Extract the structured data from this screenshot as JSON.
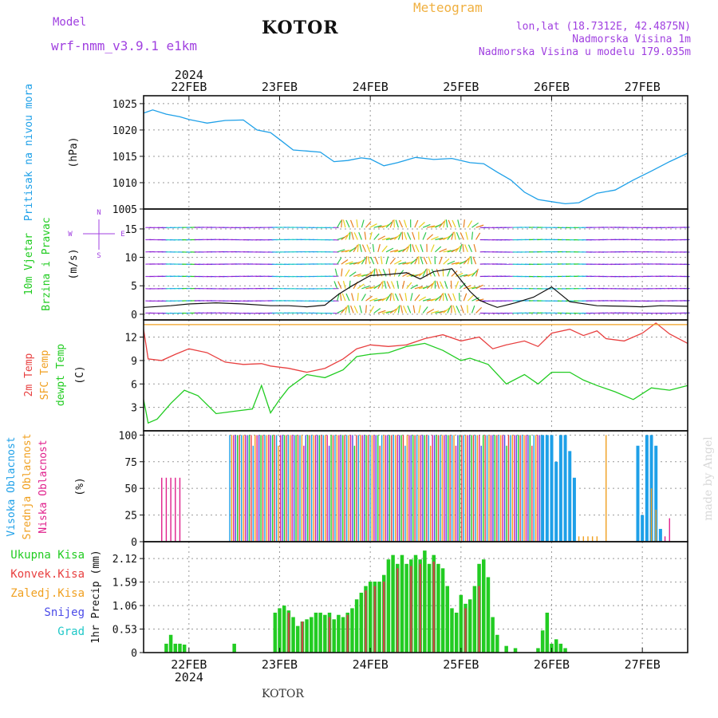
{
  "header": {
    "model_label": "Model",
    "model_name": "wrf-nmm_v3.9.1  e1km",
    "station": "KOTOR",
    "meteogram": "Meteogram",
    "coords": "lon,lat (18.7312E, 42.4875N)",
    "altitude": "Nadmorska Visina 1m",
    "model_altitude": "Nadmorska Visina u modelu 179.035m"
  },
  "footer": {
    "station": "KOTOR",
    "credit": "made by Angel"
  },
  "colors": {
    "pressure": "#1ea0e8",
    "temp": "#e84040",
    "sfc": "#f0a020",
    "dewpt": "#22cc22",
    "high_cloud": "#1ea0e8",
    "mid_cloud": "#f0a020",
    "low_cloud": "#e0208c",
    "precip": "#22cc22",
    "conv": "#c84848",
    "snow": "#4a4ae8",
    "grad": "#20c8c8"
  },
  "chart_data": [
    {
      "type": "line",
      "panel": "pressure",
      "year": "2024",
      "x_ticks": [
        "22FEB",
        "23FEB",
        "24FEB",
        "25FEB",
        "26FEB",
        "27FEB"
      ],
      "ylabel_left": "Pritisak na nivou mora",
      "ylabel_unit": "(hPa)",
      "yticks": [
        "1005",
        "1010",
        "1015",
        "1020",
        "1025"
      ],
      "ylim": [
        1005,
        1026.5
      ],
      "series": [
        {
          "name": "Pritisak na nivou mora",
          "color": "#1ea0e8",
          "x": [
            21.5,
            21.6,
            21.75,
            21.9,
            22.0,
            22.2,
            22.4,
            22.6,
            22.75,
            22.9,
            23.0,
            23.15,
            23.3,
            23.45,
            23.6,
            23.75,
            23.9,
            24.0,
            24.15,
            24.3,
            24.5,
            24.7,
            24.9,
            25.1,
            25.25,
            25.4,
            25.55,
            25.7,
            25.85,
            26.0,
            26.15,
            26.3,
            26.5,
            26.7,
            26.9,
            27.1,
            27.3,
            27.5
          ],
          "y": [
            1023.2,
            1023.8,
            1023.0,
            1022.5,
            1022.0,
            1021.3,
            1021.8,
            1021.9,
            1020.0,
            1019.5,
            1018.2,
            1016.2,
            1016.0,
            1015.8,
            1014.0,
            1014.2,
            1014.7,
            1014.5,
            1013.2,
            1013.8,
            1014.8,
            1014.4,
            1014.6,
            1013.8,
            1013.6,
            1012.0,
            1010.5,
            1008.2,
            1006.8,
            1006.4,
            1006.0,
            1006.2,
            1008.0,
            1008.6,
            1010.5,
            1012.2,
            1014.0,
            1015.6
          ]
        }
      ]
    },
    {
      "type": "line",
      "panel": "wind",
      "ylabel_left": [
        "10m Vjetar",
        "Brzina i Pravac"
      ],
      "ylabel_unit": "(m/s)",
      "compass": [
        "N",
        "S",
        "W",
        "E"
      ],
      "yticks": [
        "0",
        "5",
        "10",
        "15"
      ],
      "ylim": [
        -1,
        18.5
      ],
      "series": [
        {
          "name": "10m speed",
          "color": "#111111",
          "x": [
            21.5,
            21.8,
            22.0,
            22.3,
            22.6,
            22.9,
            23.1,
            23.3,
            23.5,
            23.65,
            23.8,
            24.0,
            24.2,
            24.4,
            24.55,
            24.7,
            24.9,
            25.0,
            25.1,
            25.2,
            25.3,
            25.4,
            25.6,
            25.8,
            26.0,
            26.2,
            26.5,
            26.8,
            27.0,
            27.2,
            27.5
          ],
          "y": [
            1.2,
            1.5,
            1.8,
            2.0,
            1.8,
            1.5,
            1.5,
            1.3,
            1.6,
            3.5,
            5.0,
            6.8,
            7.0,
            7.3,
            6.2,
            7.5,
            8.0,
            6.0,
            4.0,
            2.5,
            1.8,
            1.2,
            2.0,
            3.0,
            4.8,
            2.2,
            1.5,
            1.4,
            1.3,
            1.5,
            1.4
          ]
        }
      ]
    },
    {
      "type": "line",
      "panel": "temperature",
      "ylabel_left": [
        "2m Temp",
        "SFC Temp",
        "dewpt Temp"
      ],
      "ylabel_unit": "(C)",
      "yticks": [
        "3",
        "6",
        "9",
        "12"
      ],
      "ylim": [
        0,
        14.2
      ],
      "series": [
        {
          "name": "2m Temp",
          "color": "#e84040",
          "x": [
            21.5,
            21.55,
            21.7,
            21.85,
            22.0,
            22.2,
            22.4,
            22.6,
            22.8,
            22.9,
            23.1,
            23.3,
            23.5,
            23.7,
            23.85,
            24.0,
            24.2,
            24.4,
            24.6,
            24.8,
            25.0,
            25.2,
            25.35,
            25.5,
            25.7,
            25.85,
            26.0,
            26.2,
            26.35,
            26.5,
            26.6,
            26.8,
            27.0,
            27.15,
            27.3,
            27.5
          ],
          "y": [
            13.0,
            9.2,
            9.0,
            9.8,
            10.5,
            10.0,
            8.8,
            8.5,
            8.6,
            8.3,
            8.0,
            7.5,
            8.0,
            9.2,
            10.5,
            11.0,
            10.8,
            11.0,
            11.8,
            12.3,
            11.5,
            12.0,
            10.5,
            11.0,
            11.5,
            10.8,
            12.5,
            13.0,
            12.2,
            12.8,
            11.8,
            11.5,
            12.5,
            13.8,
            12.4,
            11.2
          ]
        },
        {
          "name": "SFC Temp",
          "color": "#f0a020",
          "x": [
            21.5,
            27.5
          ],
          "y": [
            13.6,
            13.6
          ]
        },
        {
          "name": "dewpt Temp",
          "color": "#22cc22",
          "x": [
            21.5,
            21.55,
            21.65,
            21.8,
            21.95,
            22.1,
            22.3,
            22.5,
            22.7,
            22.8,
            22.9,
            23.0,
            23.1,
            23.3,
            23.5,
            23.7,
            23.85,
            24.0,
            24.2,
            24.4,
            24.6,
            24.8,
            25.0,
            25.1,
            25.3,
            25.5,
            25.7,
            25.85,
            26.0,
            26.2,
            26.35,
            26.5,
            26.7,
            26.9,
            27.1,
            27.3,
            27.5
          ],
          "y": [
            4.0,
            1.0,
            1.5,
            3.5,
            5.2,
            4.5,
            2.2,
            2.5,
            2.8,
            5.8,
            2.3,
            4.0,
            5.5,
            7.2,
            6.8,
            7.8,
            9.5,
            9.8,
            10.0,
            10.8,
            11.2,
            10.3,
            9.0,
            9.3,
            8.5,
            6.0,
            7.2,
            6.0,
            7.5,
            7.5,
            6.5,
            5.8,
            5.0,
            4.0,
            5.5,
            5.2,
            5.8
          ]
        }
      ]
    },
    {
      "type": "bar",
      "panel": "cloud",
      "ylabel_left": [
        "Visoka Oblacnost",
        "Srednja Oblacnost",
        "Niska Oblacnost"
      ],
      "ylabel_unit": "(%)",
      "yticks": [
        "0",
        "25",
        "50",
        "75",
        "100"
      ],
      "ylim": [
        0,
        104
      ],
      "series": [
        {
          "name": "Visoka Oblacnost",
          "color": "#1ea0e8",
          "x": [
            25.9,
            25.95,
            26.0,
            26.05,
            26.1,
            26.15,
            26.2,
            26.25,
            26.95,
            27.0,
            27.05,
            27.1,
            27.15,
            27.2
          ],
          "y": [
            100,
            100,
            100,
            75,
            100,
            100,
            85,
            60,
            90,
            25,
            100,
            100,
            90,
            12
          ]
        },
        {
          "name": "Srednja Oblacnost",
          "color": "#f0a020",
          "x": [
            26.3,
            26.35,
            26.4,
            26.45,
            26.5,
            26.6,
            27.1,
            27.15
          ],
          "y": [
            5,
            5,
            5,
            5,
            5,
            100,
            50,
            30
          ]
        },
        {
          "name": "Niska Oblacnost",
          "color": "#e0208c",
          "x": [
            21.7,
            21.75,
            21.8,
            21.85,
            21.9,
            27.25,
            27.3
          ],
          "y": [
            60,
            60,
            60,
            60,
            60,
            5,
            22
          ]
        }
      ],
      "dense_cover": {
        "from": 22.45,
        "to": 25.9,
        "value": 100
      }
    },
    {
      "type": "bar",
      "panel": "precip",
      "legend": [
        "Ukupna Kisa",
        "Konvek.Kisa",
        "Zaledj.Kisa",
        "Snijeg",
        "Grad"
      ],
      "ylabel_unit": "1hr Precip (mm)",
      "yticks": [
        "0",
        "0.53",
        "1.06",
        "1.59",
        "2.12"
      ],
      "ylim": [
        0,
        2.5
      ],
      "series": [
        {
          "name": "Ukupna Kisa",
          "color": "#22cc22",
          "x": [
            21.75,
            21.8,
            21.85,
            21.9,
            21.95,
            22.5,
            22.95,
            23.0,
            23.05,
            23.1,
            23.15,
            23.2,
            23.25,
            23.3,
            23.35,
            23.4,
            23.45,
            23.5,
            23.55,
            23.6,
            23.65,
            23.7,
            23.75,
            23.8,
            23.85,
            23.9,
            23.95,
            24.0,
            24.05,
            24.1,
            24.15,
            24.2,
            24.25,
            24.3,
            24.35,
            24.4,
            24.45,
            24.5,
            24.55,
            24.6,
            24.65,
            24.7,
            24.75,
            24.8,
            24.85,
            24.9,
            24.95,
            25.0,
            25.05,
            25.1,
            25.15,
            25.2,
            25.25,
            25.3,
            25.35,
            25.4,
            25.5,
            25.6,
            25.85,
            25.9,
            25.95,
            26.0,
            26.05,
            26.1,
            26.15
          ],
          "y": [
            0.2,
            0.4,
            0.2,
            0.2,
            0.18,
            0.2,
            0.9,
            1.0,
            1.06,
            0.95,
            0.8,
            0.6,
            0.7,
            0.75,
            0.8,
            0.9,
            0.9,
            0.85,
            0.9,
            0.75,
            0.85,
            0.8,
            0.9,
            1.0,
            1.2,
            1.35,
            1.5,
            1.6,
            1.6,
            1.6,
            1.75,
            2.1,
            2.2,
            2.0,
            2.2,
            2.0,
            2.1,
            2.2,
            2.1,
            2.3,
            2.0,
            2.2,
            2.0,
            1.9,
            1.5,
            1.0,
            0.9,
            1.3,
            1.1,
            1.2,
            1.5,
            2.0,
            2.1,
            1.7,
            0.8,
            0.4,
            0.15,
            0.1,
            0.1,
            0.5,
            0.9,
            0.2,
            0.3,
            0.2,
            0.1
          ]
        },
        {
          "name": "Konvek.Kisa",
          "color": "#c84848",
          "x": [
            23.1,
            23.25,
            23.55,
            23.75,
            23.95,
            24.05,
            24.15,
            24.3,
            24.45,
            24.55,
            24.7,
            25.05,
            25.2
          ],
          "y": [
            0.9,
            0.7,
            0.8,
            0.85,
            1.4,
            1.5,
            1.6,
            1.9,
            1.95,
            2.0,
            2.05,
            1.0,
            1.5
          ]
        }
      ]
    }
  ]
}
